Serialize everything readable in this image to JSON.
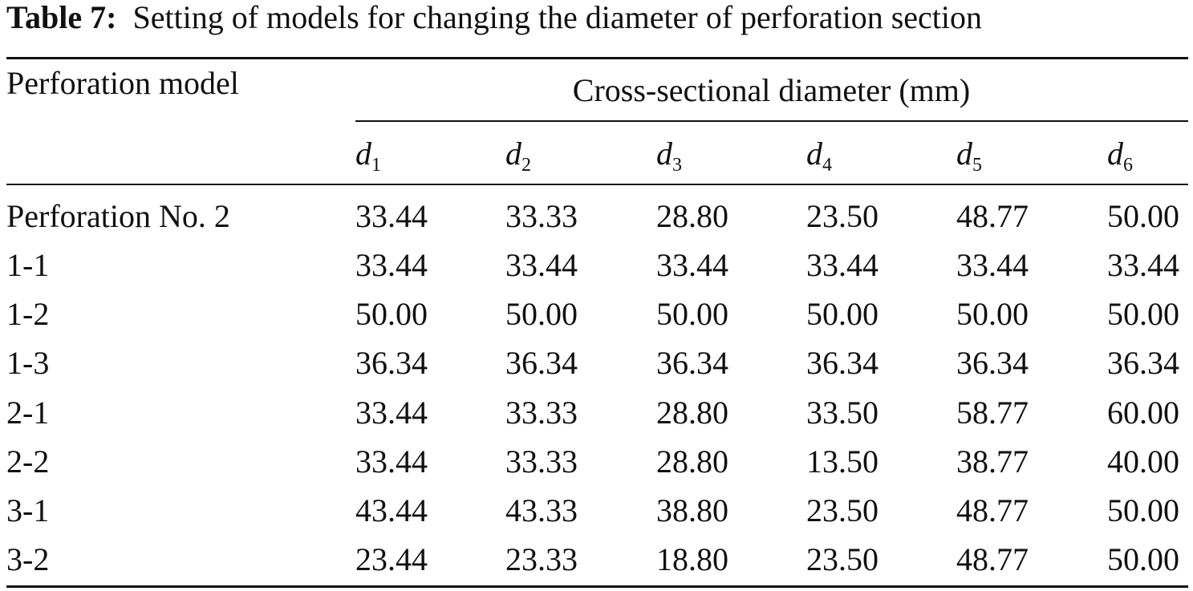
{
  "caption": {
    "label": "Table 7:",
    "text": "Setting of models for changing the diameter of perforation section"
  },
  "table": {
    "row_header": "Perforation model",
    "group_header": "Cross-sectional diameter (mm)",
    "columns": [
      {
        "symbol": "d",
        "subscript": "1"
      },
      {
        "symbol": "d",
        "subscript": "2"
      },
      {
        "symbol": "d",
        "subscript": "3"
      },
      {
        "symbol": "d",
        "subscript": "4"
      },
      {
        "symbol": "d",
        "subscript": "5"
      },
      {
        "symbol": "d",
        "subscript": "6"
      }
    ],
    "rows": [
      [
        "Perforation No. 2",
        "33.44",
        "33.33",
        "28.80",
        "23.50",
        "48.77",
        "50.00"
      ],
      [
        "1-1",
        "33.44",
        "33.44",
        "33.44",
        "33.44",
        "33.44",
        "33.44"
      ],
      [
        "1-2",
        "50.00",
        "50.00",
        "50.00",
        "50.00",
        "50.00",
        "50.00"
      ],
      [
        "1-3",
        "36.34",
        "36.34",
        "36.34",
        "36.34",
        "36.34",
        "36.34"
      ],
      [
        "2-1",
        "33.44",
        "33.33",
        "28.80",
        "33.50",
        "58.77",
        "60.00"
      ],
      [
        "2-2",
        "33.44",
        "33.33",
        "28.80",
        "13.50",
        "38.77",
        "40.00"
      ],
      [
        "3-1",
        "43.44",
        "43.33",
        "38.80",
        "23.50",
        "48.77",
        "50.00"
      ],
      [
        "3-2",
        "23.44",
        "23.33",
        "18.80",
        "23.50",
        "48.77",
        "50.00"
      ]
    ]
  }
}
